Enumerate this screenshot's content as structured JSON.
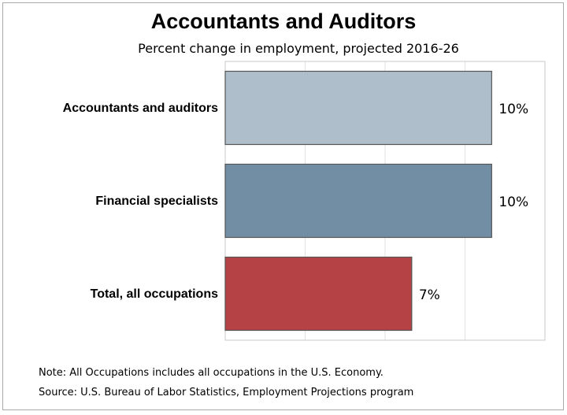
{
  "chart_data": {
    "type": "bar",
    "orientation": "horizontal",
    "title": "Accountants and Auditors",
    "subtitle": "Percent change in employment, projected 2016-26",
    "categories": [
      "Accountants and auditors",
      "Financial specialists",
      "Total, all occupations"
    ],
    "values": [
      10,
      10,
      7
    ],
    "value_labels": [
      "10%",
      "10%",
      "7%"
    ],
    "colors": [
      "#aebfcb",
      "#718ea5",
      "#b54244"
    ],
    "xlim": [
      0,
      12
    ],
    "grid": true,
    "legend": "none"
  },
  "notes": {
    "note": "Note: All Occupations includes all occupations in the U.S. Economy.",
    "source": "Source: U.S. Bureau of Labor Statistics, Employment Projections program"
  }
}
